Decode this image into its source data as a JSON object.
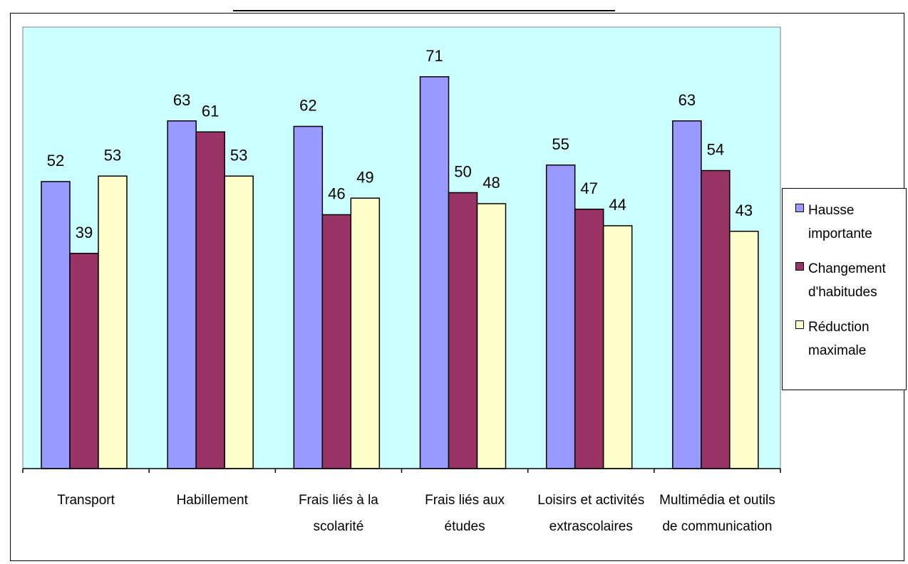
{
  "chart_data": {
    "type": "bar",
    "categories": [
      [
        "Transport"
      ],
      [
        "Habillement"
      ],
      [
        "Frais liés à la",
        "scolarité"
      ],
      [
        "Frais liés aux",
        "études"
      ],
      [
        "Loisirs et activités",
        "extrascolaires"
      ],
      [
        "Multimédia et outils",
        "de communication"
      ]
    ],
    "series": [
      {
        "name": [
          "Hausse",
          "importante"
        ],
        "color": "#9999ff",
        "values": [
          52,
          63,
          62,
          71,
          55,
          63
        ]
      },
      {
        "name": [
          "Changement",
          "d'habitudes"
        ],
        "color": "#993366",
        "values": [
          39,
          61,
          46,
          50,
          47,
          54
        ]
      },
      {
        "name": [
          "Réduction",
          "maximale"
        ],
        "color": "#ffffcc",
        "values": [
          53,
          53,
          49,
          48,
          44,
          43
        ]
      }
    ],
    "ylim": [
      0,
      80
    ],
    "plot_background": "#ccffff",
    "grid": false,
    "legend_position": "right",
    "data_labels": true
  }
}
